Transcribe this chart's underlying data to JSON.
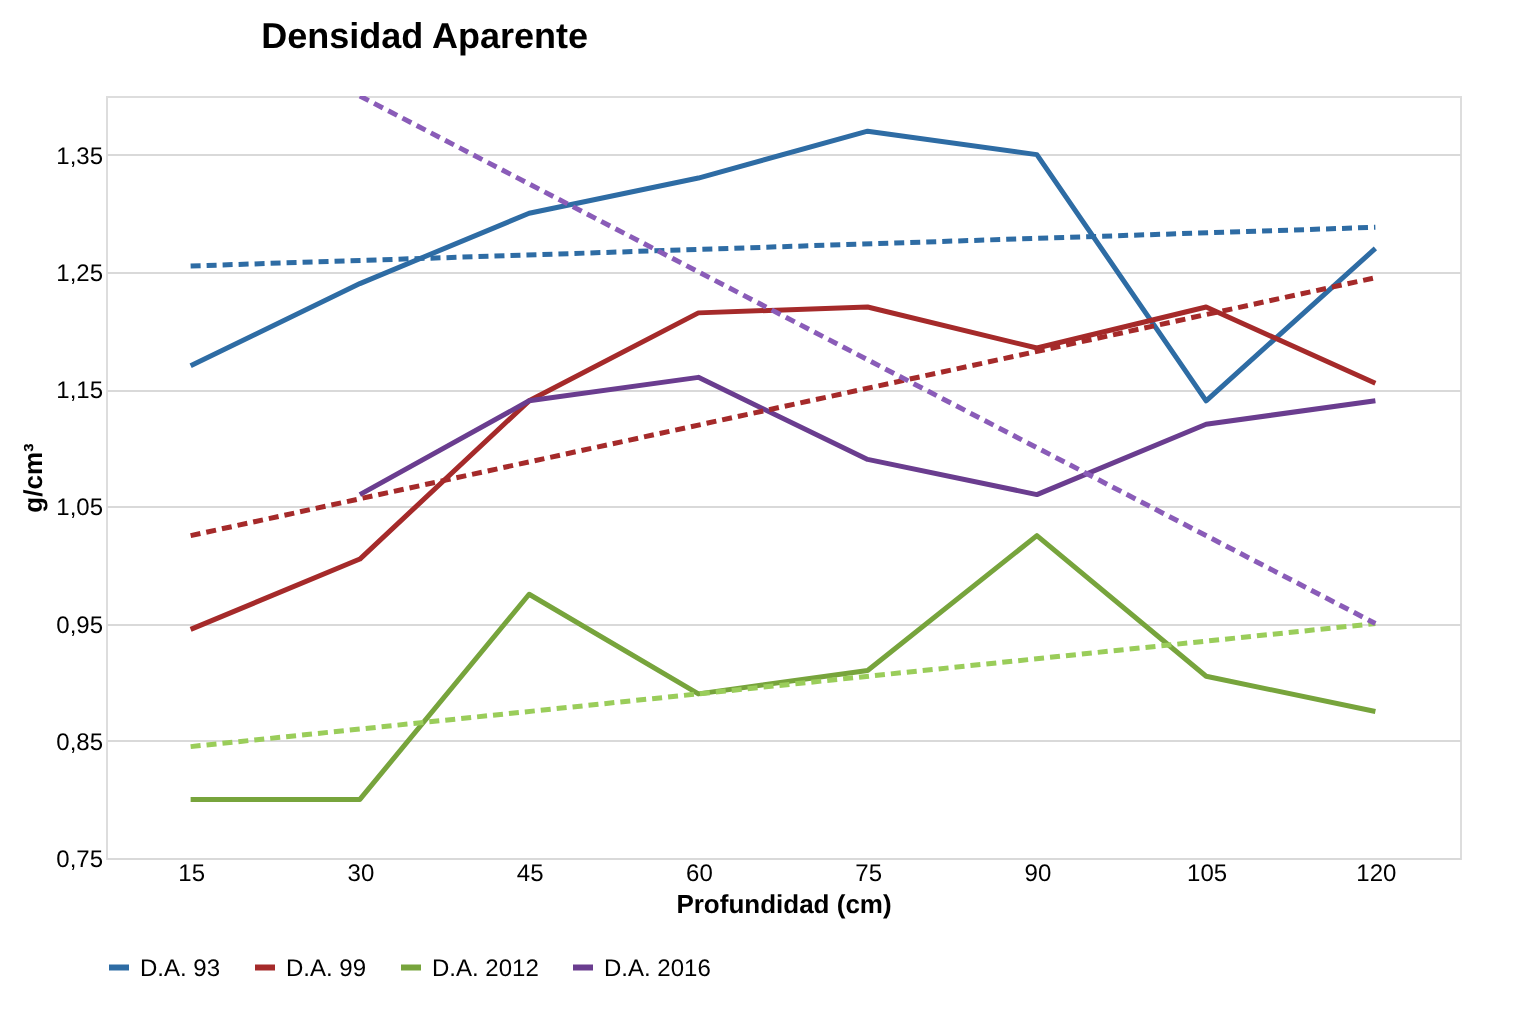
{
  "chart_data": {
    "type": "line",
    "title": "Densidad Aparente",
    "xlabel": "Profundidad (cm)",
    "ylabel": "g/cm³",
    "categories": [
      "15",
      "30",
      "45",
      "60",
      "75",
      "90",
      "105",
      "120"
    ],
    "series": [
      {
        "name": "D.A. 93",
        "color": "#2e6ca4",
        "values": [
          1.17,
          1.24,
          1.3,
          1.33,
          1.37,
          1.35,
          1.14,
          1.27
        ]
      },
      {
        "name": "D.A. 99",
        "color": "#a52a2a",
        "values": [
          0.945,
          1.005,
          1.14,
          1.215,
          1.22,
          1.185,
          1.22,
          1.155
        ]
      },
      {
        "name": "D.A. 2012",
        "color": "#77a43c",
        "values": [
          0.8,
          0.8,
          0.975,
          0.89,
          0.91,
          1.025,
          0.905,
          0.875
        ]
      },
      {
        "name": "D.A. 2016",
        "color": "#6a3d8f",
        "values": [
          null,
          1.06,
          1.14,
          1.16,
          1.09,
          1.06,
          1.12,
          1.14
        ]
      },
      {
        "color": "#2e6ca4",
        "line_style": "dashed",
        "x": [
          "15",
          "120"
        ],
        "values": [
          1.255,
          1.288
        ]
      },
      {
        "color": "#a52a2a",
        "line_style": "dashed",
        "x": [
          "15",
          "120"
        ],
        "values": [
          1.025,
          1.245
        ]
      },
      {
        "color": "#9acd5a",
        "line_style": "dashed",
        "x": [
          "15",
          "120"
        ],
        "values": [
          0.845,
          0.95
        ]
      },
      {
        "color": "#8a5cb8",
        "line_style": "dashed",
        "x": [
          "30",
          "120"
        ],
        "values": [
          1.4,
          0.95
        ]
      }
    ],
    "ylim": [
      0.75,
      1.4
    ],
    "yticks": [
      {
        "value": 0.75,
        "label": "0,75"
      },
      {
        "value": 0.85,
        "label": "0,85"
      },
      {
        "value": 0.95,
        "label": "0,95"
      },
      {
        "value": 1.05,
        "label": "1,05"
      },
      {
        "value": 1.15,
        "label": "1,15"
      },
      {
        "value": 1.25,
        "label": "1,25"
      },
      {
        "value": 1.35,
        "label": "1,35"
      }
    ],
    "grid": "y",
    "legend": "bottom",
    "line_style": "solid",
    "marker": "none"
  }
}
